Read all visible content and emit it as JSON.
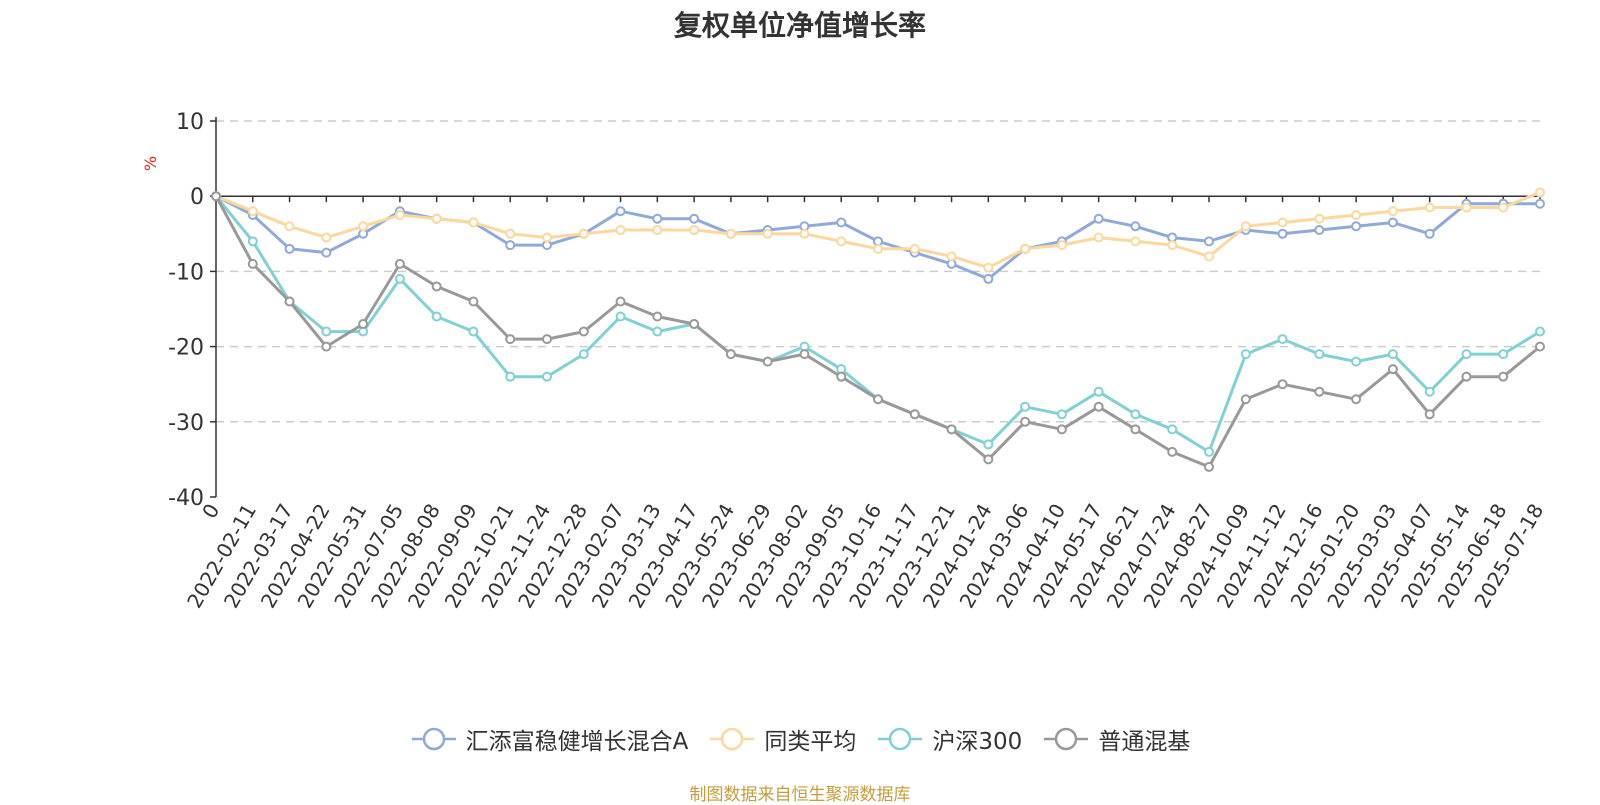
{
  "title": "复权单位净值增长率",
  "source_note": "制图数据来自恒生聚源数据库",
  "colors": {
    "fund": "#8eaadb",
    "peer": "#fdd79c",
    "hs300": "#7fd1d5",
    "mixed": "#999999",
    "axis": "#333333",
    "grid": "#cccccc",
    "unit": "#ee2222"
  },
  "chart_data": {
    "type": "line",
    "title": "复权单位净值增长率",
    "ylabel": "%",
    "ylim": [
      -40,
      10
    ],
    "yticks": [
      10,
      0,
      -10,
      -20,
      -30,
      -40
    ],
    "grid": "horizontal dashed",
    "legend_position": "bottom",
    "x_tick_labels": [
      "0",
      "2022-02-11",
      "2022-03-17",
      "2022-04-22",
      "2022-05-31",
      "2022-07-05",
      "2022-08-08",
      "2022-09-09",
      "2022-10-21",
      "2022-11-24",
      "2022-12-28",
      "2023-02-07",
      "2023-03-13",
      "2023-04-17",
      "2023-05-24",
      "2023-06-29",
      "2023-08-02",
      "2023-09-05",
      "2023-10-16",
      "2023-11-17",
      "2023-12-21",
      "2024-01-24",
      "2024-03-06",
      "2024-04-10",
      "2024-05-17",
      "2024-06-21",
      "2024-07-24",
      "2024-08-27",
      "2024-10-09",
      "2024-11-12",
      "2024-12-16",
      "2025-01-20",
      "2025-03-03",
      "2025-04-07",
      "2025-05-14",
      "2025-06-18",
      "2025-07-18"
    ],
    "series": [
      {
        "name": "汇添富稳健增长混合A",
        "color": "#8eaadb",
        "values": [
          0,
          -2.5,
          -7,
          -7.5,
          -5,
          -2,
          -3,
          -3.5,
          -6.5,
          -6.5,
          -5,
          -2,
          -3,
          -3,
          -5,
          -4.5,
          -4,
          -3.5,
          -6,
          -7.5,
          -9,
          -11,
          -7,
          -6,
          -3,
          -4,
          -5.5,
          -6,
          -4.5,
          -5,
          -4.5,
          -4,
          -3.5,
          -5,
          -1,
          -1,
          -1
        ]
      },
      {
        "name": "同类平均",
        "color": "#fdd79c",
        "values": [
          0,
          -2,
          -4,
          -5.5,
          -4,
          -2.5,
          -3,
          -3.5,
          -5,
          -5.5,
          -5,
          -4.5,
          -4.5,
          -4.5,
          -5,
          -5,
          -5,
          -6,
          -7,
          -7,
          -8,
          -9.5,
          -7,
          -6.5,
          -5.5,
          -6,
          -6.5,
          -8,
          -4,
          -3.5,
          -3,
          -2.5,
          -2,
          -1.5,
          -1.5,
          -1.5,
          0.5
        ]
      },
      {
        "name": "沪深300",
        "color": "#7fd1d5",
        "values": [
          0,
          -6,
          -14,
          -18,
          -18,
          -11,
          -16,
          -18,
          -24,
          -24,
          -21,
          -16,
          -18,
          -17,
          -21,
          -22,
          -20,
          -23,
          -27,
          -29,
          -31,
          -33,
          -28,
          -29,
          -26,
          -29,
          -31,
          -34,
          -21,
          -19,
          -21,
          -22,
          -21,
          -26,
          -21,
          -21,
          -18
        ]
      },
      {
        "name": "普通混基",
        "color": "#999999",
        "values": [
          0,
          -9,
          -14,
          -20,
          -17,
          -9,
          -12,
          -14,
          -19,
          -19,
          -18,
          -14,
          -16,
          -17,
          -21,
          -22,
          -21,
          -24,
          -27,
          -29,
          -31,
          -35,
          -30,
          -31,
          -28,
          -31,
          -34,
          -36,
          -27,
          -25,
          -26,
          -27,
          -23,
          -29,
          -24,
          -24,
          -20
        ]
      }
    ]
  }
}
